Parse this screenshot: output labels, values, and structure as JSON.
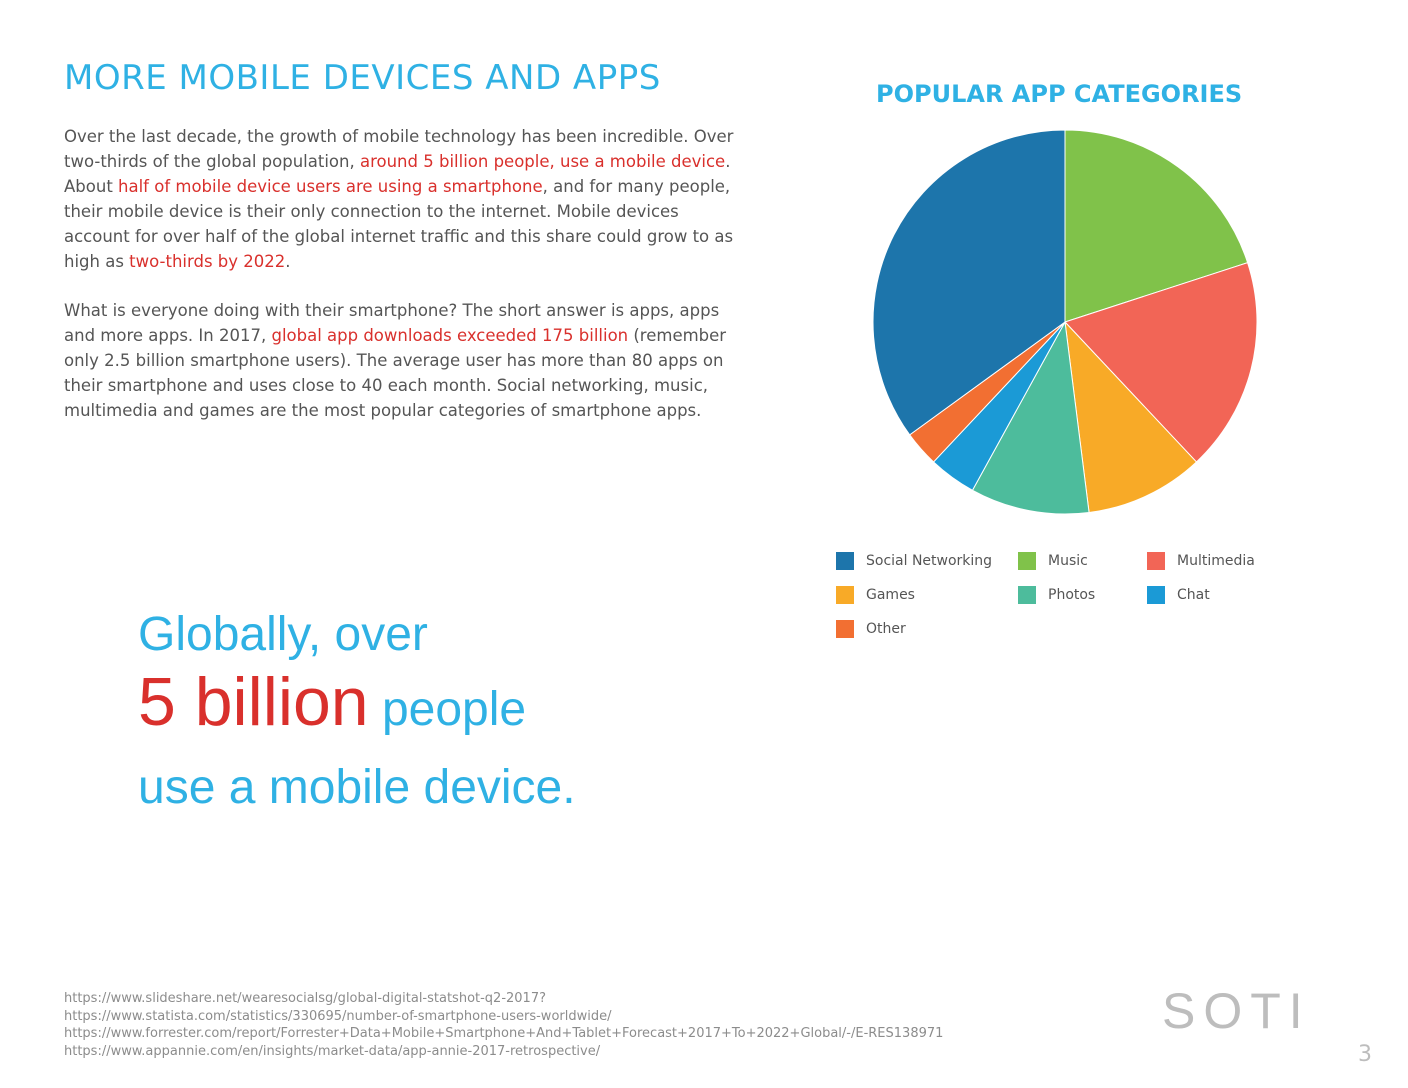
{
  "heading": "MORE MOBILE DEVICES AND APPS",
  "para1": {
    "t1": "Over the last decade, the growth of mobile technology has been incredible. Over two-thirds of the global population, ",
    "h1": "around 5 billion people, use a mobile device",
    "t2": ". About ",
    "h2": "half of mobile device users are using a smartphone",
    "t3": ", and for many people, their mobile device is their only connection to the internet. Mobile devices account for over half of the global internet traffic and this share could grow to as high as ",
    "h3": "two-thirds by 2022",
    "t4": "."
  },
  "para2": {
    "t1": "What is everyone doing with their smartphone? The short answer is apps, apps and more apps. In 2017, ",
    "h1": "global app downloads exceeded 175 billion",
    "t2": " (remember only 2.5 billion smartphone users). The average user has more than 80 apps on their smartphone and uses close to 40 each month. Social networking, music, multimedia and games are the most popular categories of smartphone apps."
  },
  "callout": {
    "line1": "Globally, over",
    "big": "5 billion",
    "people": " people",
    "line3": "use a mobile device."
  },
  "chart_data": {
    "type": "pie",
    "title": "POPULAR APP CATEGORIES",
    "legend_position": "bottom",
    "slices": [
      {
        "label": "Music",
        "value": 20,
        "color": "#80c24a"
      },
      {
        "label": "Multimedia",
        "value": 18,
        "color": "#f26556"
      },
      {
        "label": "Games",
        "value": 10,
        "color": "#f8aa27"
      },
      {
        "label": "Photos",
        "value": 10,
        "color": "#4dbc9c"
      },
      {
        "label": "Chat",
        "value": 4,
        "color": "#1b9ad6"
      },
      {
        "label": "Other",
        "value": 3,
        "color": "#f26f32"
      },
      {
        "label": "Social Networking",
        "value": 35,
        "color": "#1d75ab"
      }
    ],
    "legend": [
      {
        "label": "Social Networking",
        "color": "#1d75ab"
      },
      {
        "label": "Music",
        "color": "#80c24a"
      },
      {
        "label": "Multimedia",
        "color": "#f26556"
      },
      {
        "label": "Games",
        "color": "#f8aa27"
      },
      {
        "label": "Photos",
        "color": "#4dbc9c"
      },
      {
        "label": "Chat",
        "color": "#1b9ad6"
      },
      {
        "label": "Other",
        "color": "#f26f32"
      }
    ]
  },
  "references": [
    "https://www.slideshare.net/wearesocialsg/global-digital-statshot-q2-2017?",
    "https://www.statista.com/statistics/330695/number-of-smartphone-users-worldwide/",
    "https://www.forrester.com/report/Forrester+Data+Mobile+Smartphone+And+Tablet+Forecast+2017+To+2022+Global/-/E-RES138971",
    "https://www.appannie.com/en/insights/market-data/app-annie-2017-retrospective/"
  ],
  "logo": "SOTI",
  "page_number": "3"
}
